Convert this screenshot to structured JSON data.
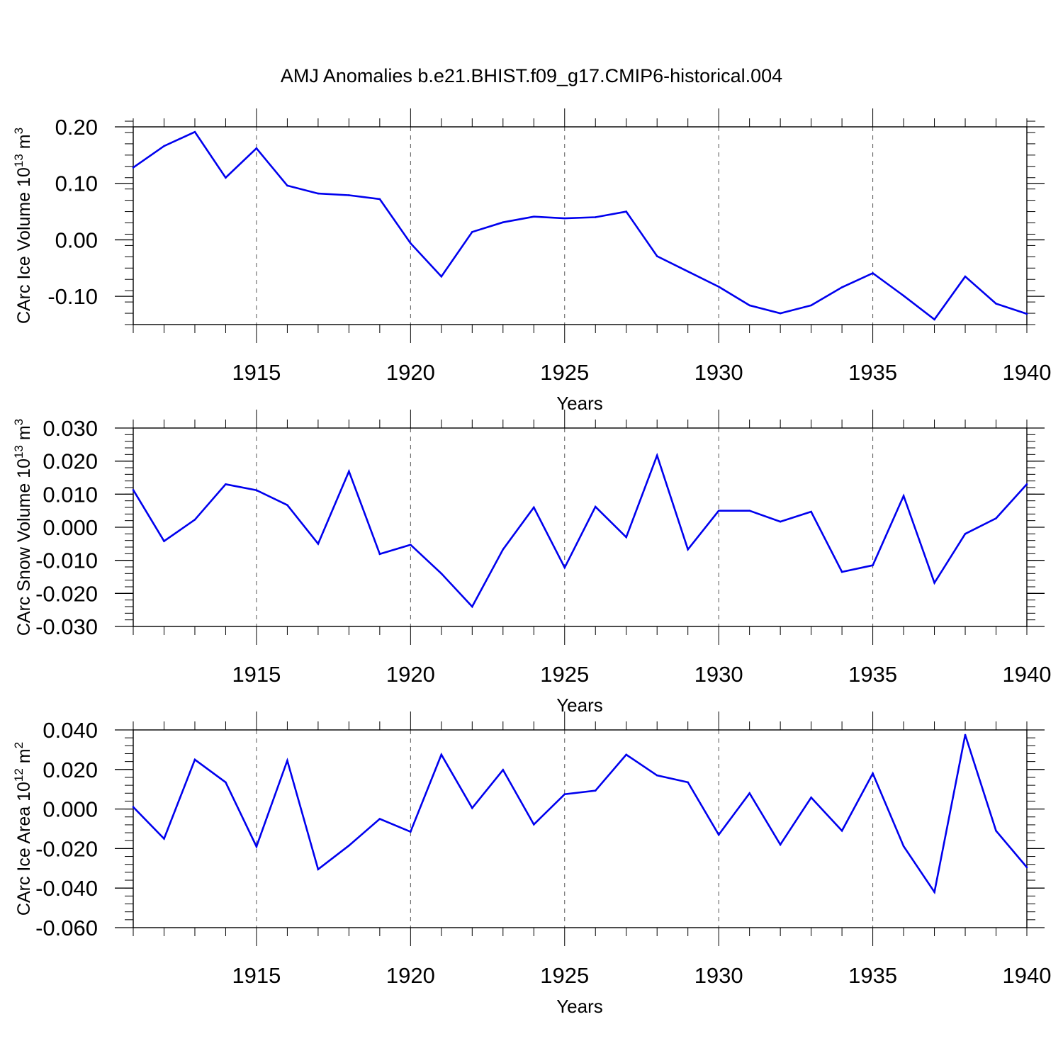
{
  "figure_title": "AMJ Anomalies b.e21.BHIST.f09_g17.CMIP6-historical.004",
  "colors": {
    "line": "#0000ee",
    "axis": "#000000",
    "grid": "#555555"
  },
  "chart_data": [
    {
      "type": "line",
      "ylabel_main": "CArc Ice Volume 10",
      "ylabel_exp": "13",
      "ylabel_unit": "m",
      "ylabel_unit_exp": "3",
      "xlabel": "Years",
      "xlim": [
        1911,
        1940
      ],
      "ylim": [
        -0.15,
        0.2
      ],
      "x_ticks": [
        1915,
        1920,
        1925,
        1930,
        1935,
        1940
      ],
      "y_ticks": [
        -0.1,
        0.0,
        0.1,
        0.2
      ],
      "y_tick_labels": [
        "-0.10",
        "0.00",
        "0.10",
        "0.20"
      ],
      "y_minor_step": 0.02,
      "x": [
        1911,
        1912,
        1913,
        1914,
        1915,
        1916,
        1917,
        1918,
        1919,
        1920,
        1921,
        1922,
        1923,
        1924,
        1925,
        1926,
        1927,
        1928,
        1929,
        1930,
        1931,
        1932,
        1933,
        1934,
        1935,
        1936,
        1937,
        1938,
        1939,
        1940
      ],
      "values": [
        0.128,
        0.166,
        0.191,
        0.11,
        0.162,
        0.096,
        0.082,
        0.079,
        0.072,
        -0.006,
        -0.065,
        0.014,
        0.031,
        0.041,
        0.038,
        0.04,
        0.05,
        -0.029,
        -0.056,
        -0.083,
        -0.116,
        -0.13,
        -0.116,
        -0.084,
        -0.059,
        -0.099,
        -0.141,
        -0.065,
        -0.113,
        -0.131
      ]
    },
    {
      "type": "line",
      "ylabel_main": "CArc Snow Volume 10",
      "ylabel_exp": "13",
      "ylabel_unit": "m",
      "ylabel_unit_exp": "3",
      "xlabel": "Years",
      "xlim": [
        1911,
        1940
      ],
      "ylim": [
        -0.03,
        0.03
      ],
      "x_ticks": [
        1915,
        1920,
        1925,
        1930,
        1935,
        1940
      ],
      "y_ticks": [
        -0.03,
        -0.02,
        -0.01,
        0.0,
        0.01,
        0.02,
        0.03
      ],
      "y_tick_labels": [
        "-0.030",
        "-0.020",
        "-0.010",
        "0.000",
        "0.010",
        "0.020",
        "0.030"
      ],
      "y_minor_step": 0.002,
      "x": [
        1911,
        1912,
        1913,
        1914,
        1915,
        1916,
        1917,
        1918,
        1919,
        1920,
        1921,
        1922,
        1923,
        1924,
        1925,
        1926,
        1927,
        1928,
        1929,
        1930,
        1931,
        1932,
        1933,
        1934,
        1935,
        1936,
        1937,
        1938,
        1939,
        1940
      ],
      "values": [
        0.0113,
        -0.0042,
        0.0023,
        0.013,
        0.0112,
        0.0067,
        -0.005,
        0.0169,
        -0.0081,
        -0.0053,
        -0.014,
        -0.024,
        -0.0067,
        0.006,
        -0.0122,
        0.0062,
        -0.003,
        0.0217,
        -0.0067,
        0.005,
        0.005,
        0.0017,
        0.0047,
        -0.0135,
        -0.0115,
        0.0095,
        -0.0168,
        -0.002,
        0.0027,
        0.013
      ]
    },
    {
      "type": "line",
      "ylabel_main": "CArc Ice Area 10",
      "ylabel_exp": "12",
      "ylabel_unit": "m",
      "ylabel_unit_exp": "2",
      "xlabel": "Years",
      "xlim": [
        1911,
        1940
      ],
      "ylim": [
        -0.06,
        0.04
      ],
      "x_ticks": [
        1915,
        1920,
        1925,
        1930,
        1935,
        1940
      ],
      "y_ticks": [
        -0.06,
        -0.04,
        -0.02,
        0.0,
        0.02,
        0.04
      ],
      "y_tick_labels": [
        "-0.060",
        "-0.040",
        "-0.020",
        "0.000",
        "0.020",
        "0.040"
      ],
      "y_minor_step": 0.004,
      "x": [
        1911,
        1912,
        1913,
        1914,
        1915,
        1916,
        1917,
        1918,
        1919,
        1920,
        1921,
        1922,
        1923,
        1924,
        1925,
        1926,
        1927,
        1928,
        1929,
        1930,
        1931,
        1932,
        1933,
        1934,
        1935,
        1936,
        1937,
        1938,
        1939,
        1940
      ],
      "values": [
        0.001,
        -0.015,
        0.025,
        0.0135,
        -0.019,
        0.0245,
        -0.0305,
        -0.0185,
        -0.005,
        -0.0115,
        0.0275,
        0.0005,
        0.0198,
        -0.0078,
        0.0075,
        0.0093,
        0.0275,
        0.017,
        0.0135,
        -0.013,
        0.008,
        -0.018,
        0.0058,
        -0.011,
        0.018,
        -0.0188,
        -0.042,
        0.0375,
        -0.011,
        -0.0295
      ]
    }
  ]
}
